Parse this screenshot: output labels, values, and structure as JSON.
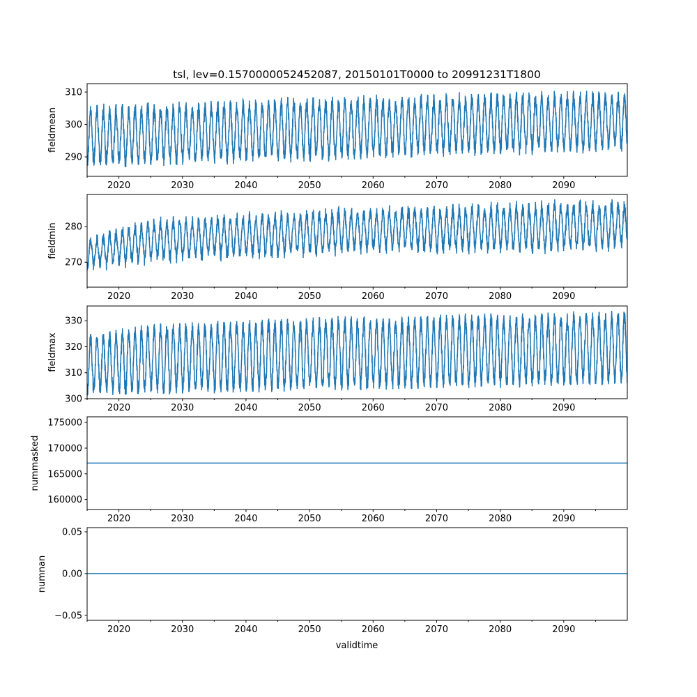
{
  "chart_data": {
    "type": "line",
    "title": "tsl, lev=0.1570000052452087, 20150101T0000 to 20991231T1800",
    "xlabel": "validtime",
    "xlim": [
      2015,
      2100
    ],
    "x_ticks": [
      2020,
      2030,
      2040,
      2050,
      2060,
      2070,
      2080,
      2090
    ],
    "x_tick_labels": [
      "2020",
      "2030",
      "2040",
      "2050",
      "2060",
      "2070",
      "2080",
      "2090"
    ],
    "x_minor_ticks": [
      2015,
      2025,
      2035,
      2045,
      2055,
      2065,
      2075,
      2085,
      2095
    ],
    "line_color": "#1f77b4",
    "panels": [
      {
        "ylabel": "fieldmean",
        "ylim": [
          284,
          312.6
        ],
        "y_ticks": [
          290,
          300,
          310
        ],
        "y_tick_labels": [
          "290",
          "300",
          "310"
        ],
        "series_kind": "seasonal",
        "envelope_years": [
          2015,
          2025,
          2035,
          2045,
          2055,
          2065,
          2075,
          2085,
          2095,
          2100
        ],
        "annual_max": [
          305.5,
          306,
          306.5,
          307.5,
          308,
          308.5,
          309,
          309.5,
          309.5,
          310
        ],
        "annual_min": [
          287,
          288,
          288.5,
          289,
          289.5,
          290.5,
          291,
          291.5,
          292,
          292.5
        ]
      },
      {
        "ylabel": "fieldmin",
        "ylim": [
          263,
          289
        ],
        "y_ticks": [
          270,
          280
        ],
        "y_tick_labels": [
          "270",
          "280"
        ],
        "series_kind": "seasonal",
        "envelope_years": [
          2015,
          2025,
          2035,
          2045,
          2055,
          2065,
          2075,
          2085,
          2095,
          2100
        ],
        "annual_max": [
          277,
          282,
          283,
          284,
          285,
          285.5,
          286,
          286.5,
          287,
          287
        ],
        "annual_min": [
          268,
          270,
          271,
          271.5,
          272.5,
          273,
          273,
          273,
          273.5,
          274
        ]
      },
      {
        "ylabel": "fieldmax",
        "ylim": [
          300,
          335.7
        ],
        "y_ticks": [
          300,
          310,
          320,
          330
        ],
        "y_tick_labels": [
          "300",
          "310",
          "320",
          "330"
        ],
        "series_kind": "seasonal",
        "envelope_years": [
          2015,
          2025,
          2035,
          2045,
          2055,
          2065,
          2075,
          2085,
          2095,
          2100
        ],
        "annual_max": [
          324,
          328,
          329,
          330,
          331,
          331,
          332,
          332,
          333,
          333
        ],
        "annual_min": [
          302,
          302.5,
          303,
          303.5,
          304,
          304.5,
          305,
          305,
          306,
          306.5
        ]
      },
      {
        "ylabel": "nummasked",
        "ylim": [
          158050,
          176100
        ],
        "y_ticks": [
          160000,
          165000,
          170000,
          175000
        ],
        "y_tick_labels": [
          "160000",
          "165000",
          "170000",
          "175000"
        ],
        "series_kind": "constant",
        "value": 167100
      },
      {
        "ylabel": "numnan",
        "ylim": [
          -0.056,
          0.055
        ],
        "y_ticks": [
          -0.05,
          0.0,
          0.05
        ],
        "y_tick_labels": [
          "−0.05",
          "0.00",
          "0.05"
        ],
        "series_kind": "constant",
        "value": 0
      }
    ]
  }
}
